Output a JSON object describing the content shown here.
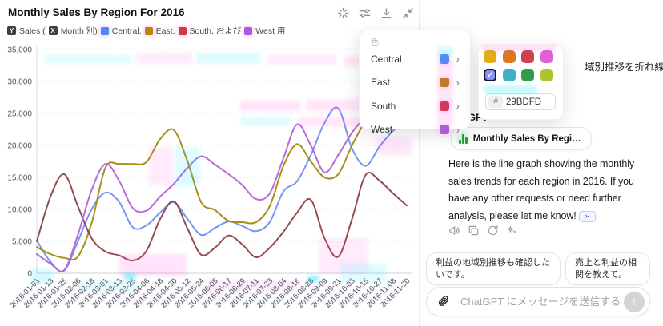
{
  "chart_panel": {
    "title": "Monthly Sales By Region For 2016",
    "toolbar_icons": [
      "interactive-chart-icon",
      "chart-settings-icon",
      "download-icon",
      "collapse-icon"
    ],
    "legend": {
      "y_badge": "Y",
      "sales_text": "Sales (",
      "x_badge": "X",
      "month_text": "Month 別)",
      "series_labels": [
        "Central,",
        "East,",
        "South, および",
        "West 用"
      ],
      "series_colors": [
        "#4B8BF5",
        "#B8860B",
        "#C93A44",
        "#A95CD6"
      ]
    },
    "chart_data": {
      "type": "line",
      "title": "Monthly Sales By Region For 2016",
      "x": [
        "2016-01-01",
        "2016-01-13",
        "2016-01-25",
        "2016-02-06",
        "2016-02-18",
        "2016-03-01",
        "2016-03-13",
        "2016-03-25",
        "2016-04-06",
        "2016-04-18",
        "2016-04-30",
        "2016-05-12",
        "2016-05-24",
        "2016-06-05",
        "2016-06-17",
        "2016-06-29",
        "2016-07-11",
        "2016-07-23",
        "2016-08-04",
        "2016-08-16",
        "2016-08-28",
        "2016-09-09",
        "2016-09-21",
        "2016-10-03",
        "2016-10-15",
        "2016-10-27",
        "2016-11-08",
        "2016-11-20"
      ],
      "series": [
        {
          "name": "Central",
          "color": "#7090F0",
          "values": [
            5100,
            1800,
            400,
            5000,
            10000,
            12600,
            11200,
            7200,
            7500,
            9500,
            11100,
            8500,
            6000,
            7100,
            8100,
            7400,
            6600,
            8000,
            12800,
            14400,
            18500,
            23500,
            25800,
            19500,
            16800,
            19800,
            22300,
            23800
          ]
        },
        {
          "name": "East",
          "color": "#A28A0A",
          "values": [
            4100,
            3000,
            2400,
            2600,
            7800,
            16500,
            17100,
            17100,
            17400,
            21000,
            22400,
            17500,
            11100,
            9900,
            8200,
            8000,
            8000,
            10500,
            16800,
            20200,
            17500,
            15000,
            15500,
            20000,
            23800,
            25500,
            26500,
            27000
          ]
        },
        {
          "name": "South",
          "color": "#8E4343",
          "values": [
            5000,
            12000,
            15500,
            10500,
            5500,
            3400,
            2800,
            2000,
            3500,
            8500,
            11250,
            7000,
            2900,
            4000,
            5900,
            4500,
            2500,
            4000,
            6500,
            9500,
            11500,
            5500,
            2600,
            8500,
            15400,
            14500,
            12500,
            10600
          ]
        },
        {
          "name": "West",
          "color": "#B363D8",
          "values": [
            3000,
            1500,
            500,
            6000,
            13000,
            17100,
            14500,
            10200,
            9800,
            12000,
            14000,
            16500,
            18300,
            17000,
            15500,
            13800,
            11600,
            12500,
            18000,
            23300,
            20000,
            15800,
            18500,
            22000,
            24500,
            26000,
            27000,
            27500
          ]
        }
      ],
      "ylim": [
        0,
        35000
      ],
      "ytick_labels": [
        "0",
        "5,000",
        "10,000",
        "15,000",
        "20,000",
        "25,000",
        "30,000",
        "35,000"
      ],
      "grid": "dashed-horizontal",
      "x_label_rotation": -45,
      "legend_position": "top"
    }
  },
  "legend_dropdown": {
    "header": "色",
    "chevron": "›",
    "items": [
      {
        "label": "Central",
        "color": "#4B8BF5"
      },
      {
        "label": "East",
        "color": "#B8860B"
      },
      {
        "label": "South",
        "color": "#C93A44"
      },
      {
        "label": "West",
        "color": "#A95CD6"
      }
    ]
  },
  "color_picker": {
    "swatches": [
      {
        "color": "#E2AC15",
        "selected": false
      },
      {
        "color": "#DD7721",
        "selected": false
      },
      {
        "color": "#CC4250",
        "selected": false
      },
      {
        "color": "#DF60D5",
        "selected": false
      },
      {
        "color": "#8A8FF8",
        "selected": true
      },
      {
        "color": "#3FAFC4",
        "selected": false
      },
      {
        "color": "#2F9E49",
        "selected": false
      },
      {
        "color": "#AEC32B",
        "selected": false
      }
    ],
    "check_glyph": "✓",
    "hex_prefix": "#",
    "hex_value": "29BDFD"
  },
  "chat_panel": {
    "user_message_fragment": "域別推移を折れ線",
    "assistant_name": "ChatGPT",
    "chart_chip_label": "Monthly Sales By Regi…",
    "assistant_message": "Here is the line graph showing the monthly sales trends for each region in 2016. If you have any other requests or need further analysis, please let me know!",
    "citation_badge": "›-",
    "suggestion_chips": [
      "利益の地域別推移も確認したいです。",
      "売上と利益の相関を教えて。"
    ],
    "composer": {
      "placeholder": "ChatGPT にメッセージを送信する",
      "send_glyph": "↑"
    }
  }
}
